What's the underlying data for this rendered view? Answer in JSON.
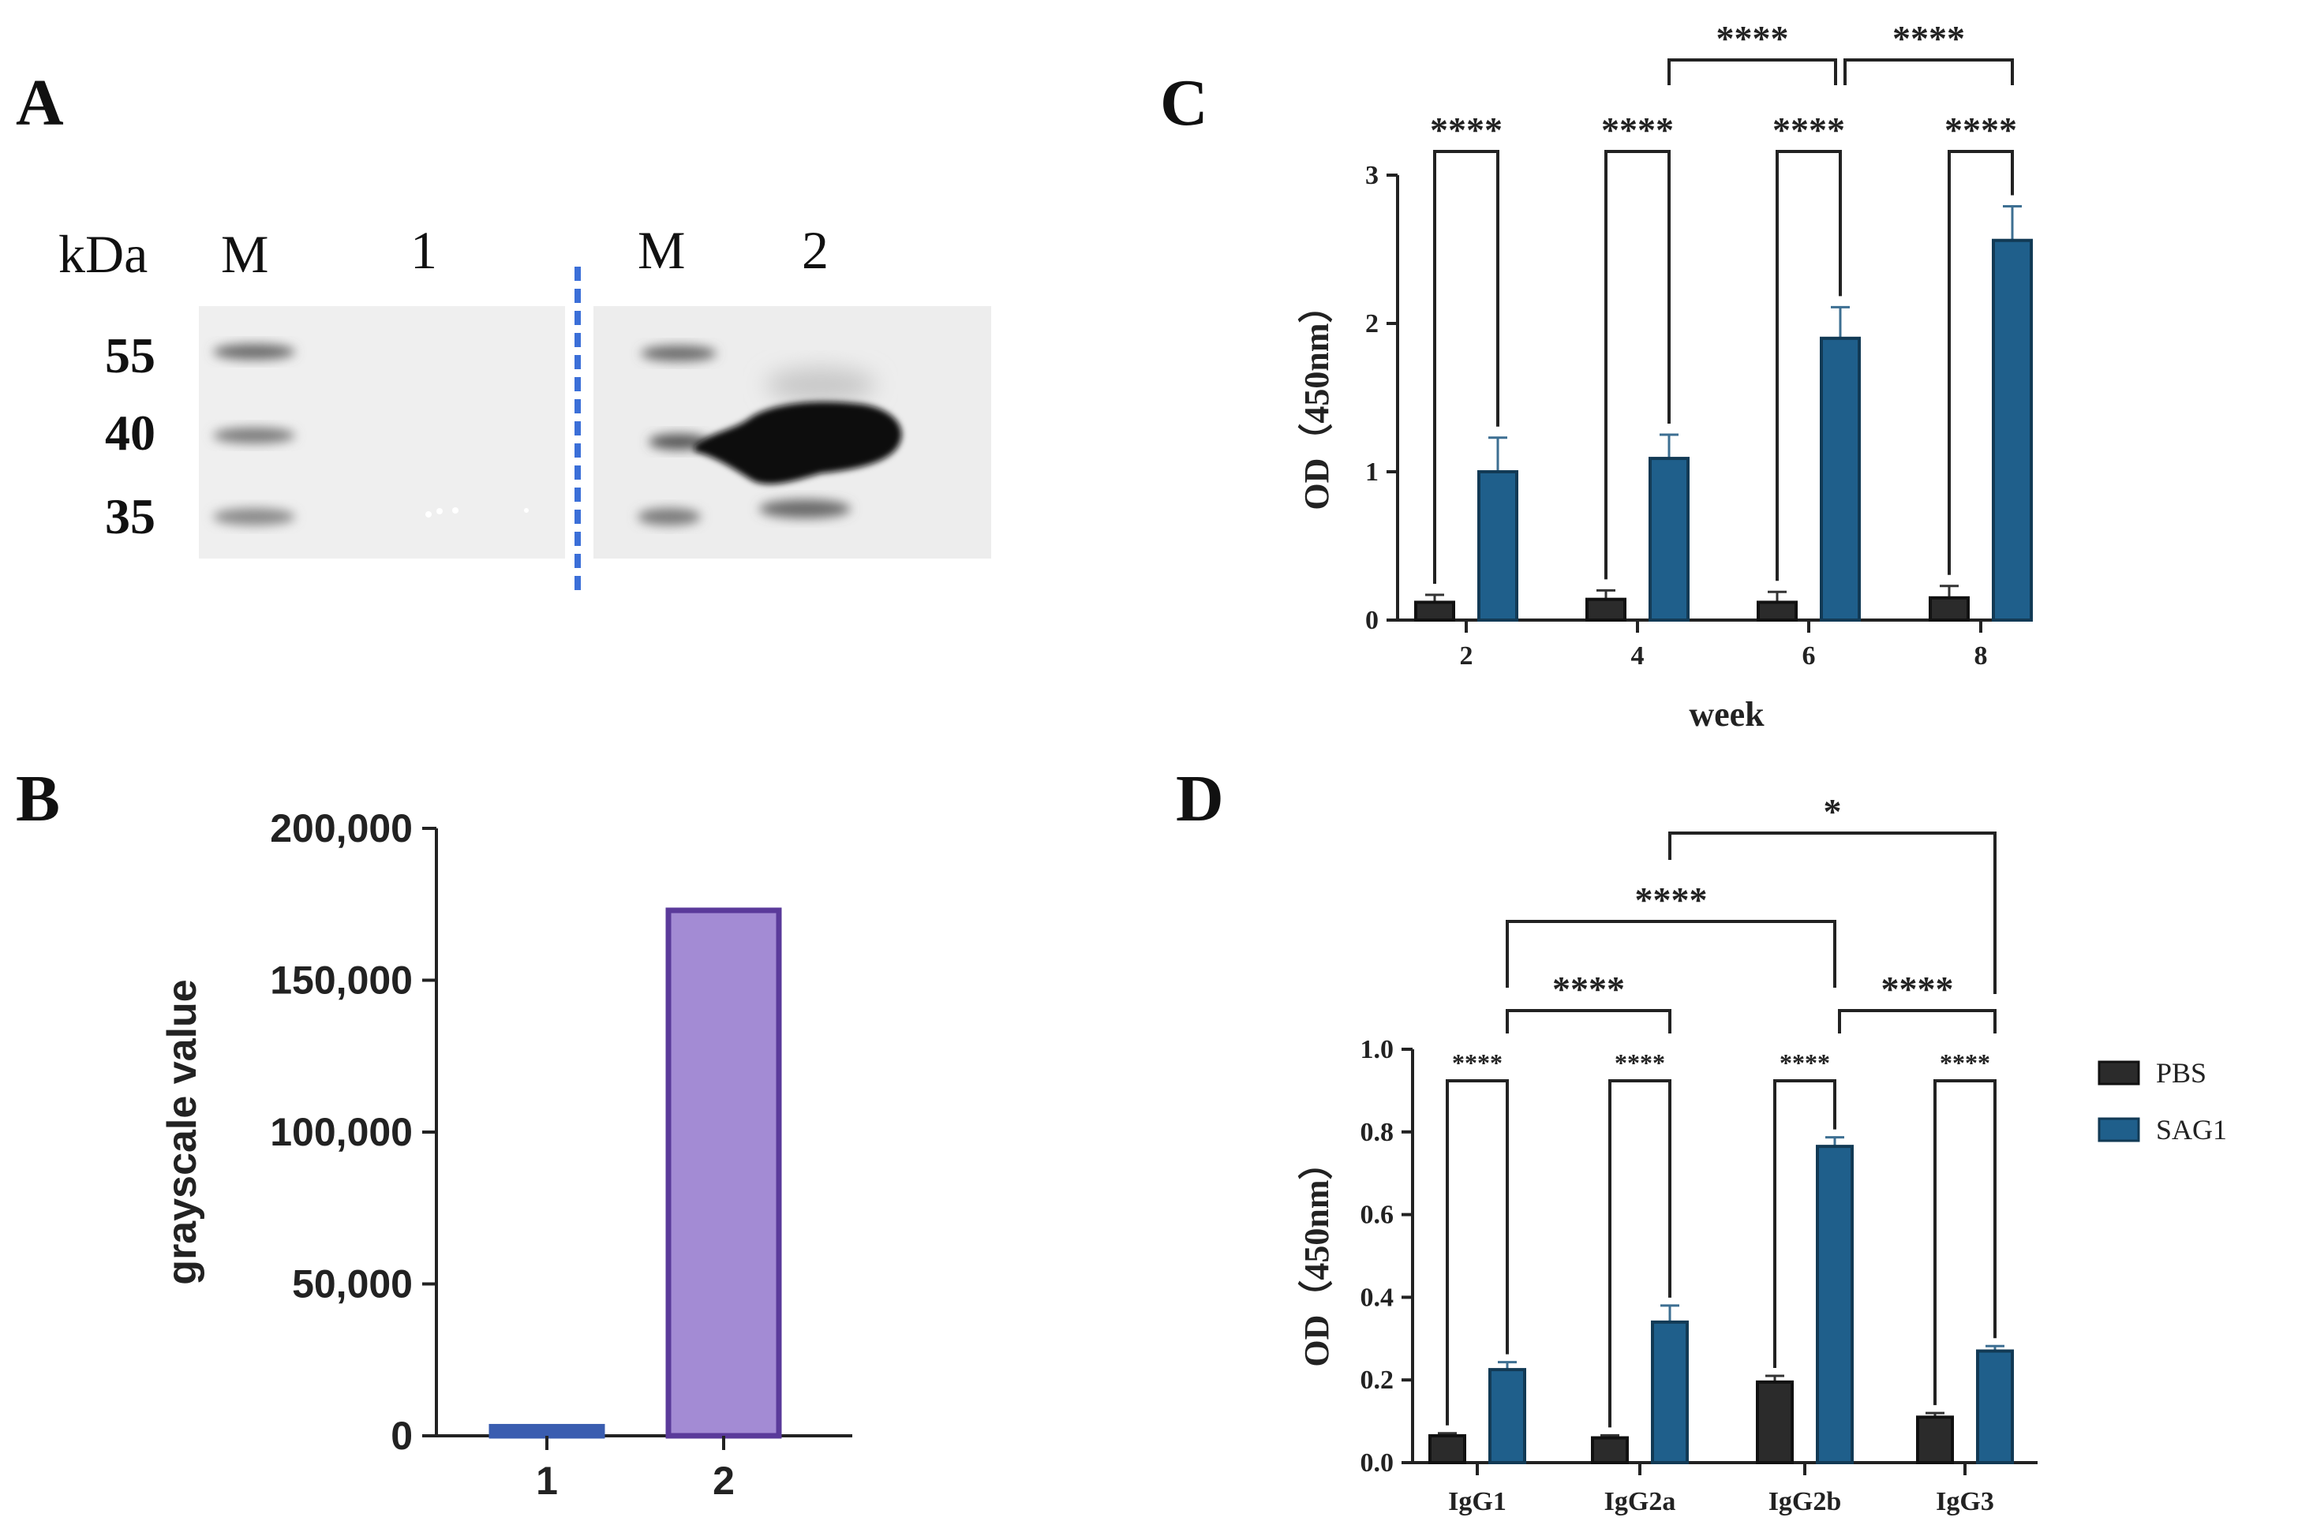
{
  "panels": {
    "A": "A",
    "B": "B",
    "C": "C",
    "D": "D"
  },
  "colors": {
    "pbs": "#2b2b2b",
    "sag1": "#1f5f8b",
    "bar_b_fill": "#a38bd4",
    "bar_b_stroke": "#5a3a9a",
    "bar_b1": "#3a5db0",
    "divider": "#3b6fd8"
  },
  "blot": {
    "unit_label": "kDa",
    "lane_labels_left": [
      "M",
      "1"
    ],
    "lane_labels_right": [
      "M",
      "2"
    ],
    "marker_sizes": [
      "55",
      "40",
      "35"
    ]
  },
  "chart_data": [
    {
      "panel": "B",
      "type": "bar",
      "categories": [
        "1",
        "2"
      ],
      "values": [
        3000,
        173000
      ],
      "title": "",
      "xlabel": "",
      "ylabel": "grayscale value",
      "ylim": [
        0,
        200000
      ],
      "yticks": [
        0,
        50000,
        100000,
        150000,
        200000
      ],
      "ytick_labels": [
        "0",
        "50,000",
        "100,000",
        "150,000",
        "200,000"
      ]
    },
    {
      "panel": "C",
      "type": "bar",
      "categories": [
        "2",
        "4",
        "6",
        "8"
      ],
      "xlabel": "week",
      "ylabel": "OD（450nm）",
      "ylim": [
        0,
        3
      ],
      "yticks": [
        0,
        1,
        2,
        3
      ],
      "ytick_labels": [
        "0",
        "1",
        "2",
        "3"
      ],
      "series": [
        {
          "name": "PBS",
          "values": [
            0.12,
            0.14,
            0.12,
            0.15
          ],
          "errors": [
            0.05,
            0.06,
            0.07,
            0.08
          ]
        },
        {
          "name": "SAG1",
          "values": [
            1.0,
            1.09,
            1.9,
            2.56
          ],
          "errors": [
            0.23,
            0.16,
            0.21,
            0.23
          ]
        }
      ],
      "significance": [
        {
          "label": "****",
          "from": "2-PBS",
          "to": "2-SAG1"
        },
        {
          "label": "****",
          "from": "4-PBS",
          "to": "4-SAG1"
        },
        {
          "label": "****",
          "from": "6-PBS",
          "to": "6-SAG1"
        },
        {
          "label": "****",
          "from": "8-PBS",
          "to": "8-SAG1"
        },
        {
          "label": "****",
          "from": "4-SAG1",
          "to": "6-SAG1"
        },
        {
          "label": "****",
          "from": "6-SAG1",
          "to": "8-SAG1"
        }
      ]
    },
    {
      "panel": "D",
      "type": "bar",
      "categories": [
        "IgG1",
        "IgG2a",
        "IgG2b",
        "IgG3"
      ],
      "xlabel": "",
      "ylabel": "OD（450nm）",
      "ylim": [
        0,
        1.0
      ],
      "yticks": [
        0,
        0.2,
        0.4,
        0.6,
        0.8,
        1.0
      ],
      "ytick_labels": [
        "0.0",
        "0.2",
        "0.4",
        "0.6",
        "0.8",
        "1.0"
      ],
      "series": [
        {
          "name": "PBS",
          "values": [
            0.065,
            0.06,
            0.195,
            0.11
          ],
          "errors": [
            0.006,
            0.006,
            0.015,
            0.01
          ]
        },
        {
          "name": "SAG1",
          "values": [
            0.225,
            0.34,
            0.765,
            0.27
          ],
          "errors": [
            0.018,
            0.04,
            0.022,
            0.012
          ]
        }
      ],
      "legend": {
        "placement": "right",
        "entries": [
          "PBS",
          "SAG1"
        ]
      },
      "significance": [
        {
          "label": "****",
          "from": "IgG1-PBS",
          "to": "IgG1-SAG1"
        },
        {
          "label": "****",
          "from": "IgG2a-PBS",
          "to": "IgG2a-SAG1"
        },
        {
          "label": "****",
          "from": "IgG2b-PBS",
          "to": "IgG2b-SAG1"
        },
        {
          "label": "****",
          "from": "IgG3-PBS",
          "to": "IgG3-SAG1"
        },
        {
          "label": "****",
          "from": "IgG1-SAG1",
          "to": "IgG2a-SAG1"
        },
        {
          "label": "****",
          "from": "IgG2b-SAG1",
          "to": "IgG3-SAG1"
        },
        {
          "label": "****",
          "from": "IgG1-SAG1",
          "to": "IgG2b-SAG1"
        },
        {
          "label": "*",
          "from": "IgG2a-SAG1",
          "to": "IgG3-SAG1"
        }
      ]
    }
  ]
}
